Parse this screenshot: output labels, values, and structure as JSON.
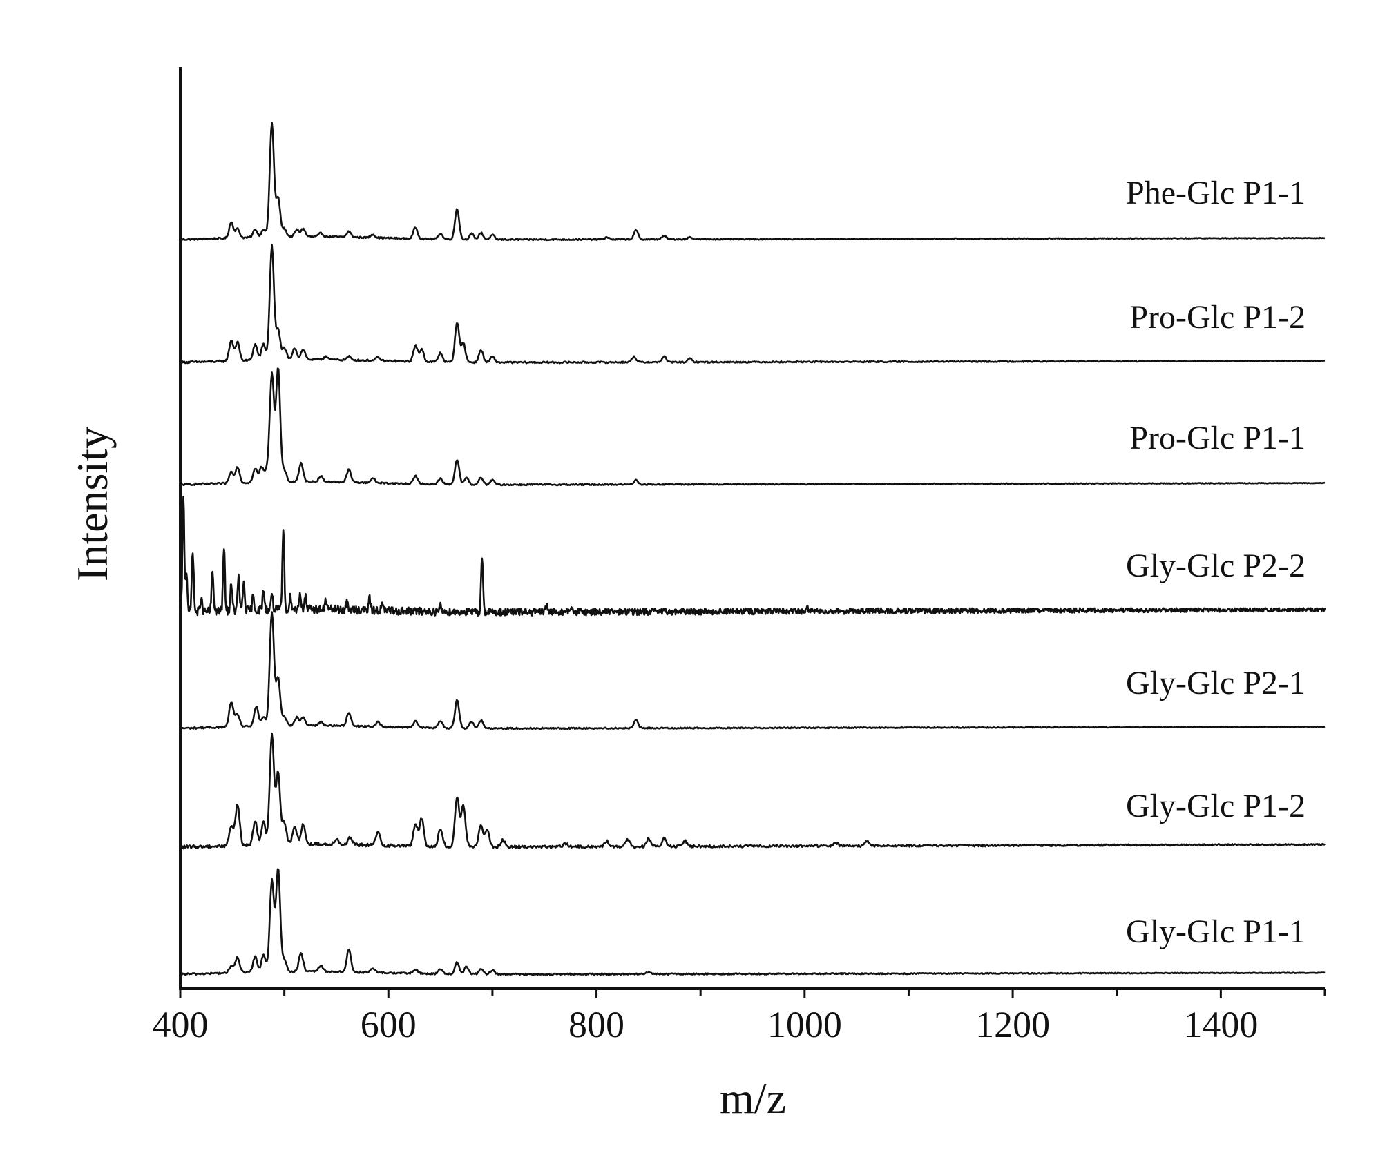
{
  "chart_data": {
    "type": "line",
    "title": "",
    "xlabel": "m/z",
    "ylabel": "Intensity",
    "xlim": [
      400,
      1500
    ],
    "x_major_ticks": [
      400,
      600,
      800,
      1000,
      1200,
      1400
    ],
    "x_minor_ticks": [
      500,
      700,
      900,
      1100,
      1300,
      1500
    ],
    "x_tick_labels": [
      "400",
      "600",
      "800",
      "1000",
      "1200",
      "1400"
    ],
    "y_ticks_shown": false,
    "grid": false,
    "legend": "labels placed at right above each stacked trace",
    "layout": "stacked offset spectra, relative intensity 0-1 per trace",
    "series": [
      {
        "name": "Phe-Glc P1-1",
        "baseline_tilt": 0.02,
        "noise": 0.006,
        "peaks": [
          [
            449,
            0.14
          ],
          [
            455,
            0.08
          ],
          [
            472,
            0.07
          ],
          [
            480,
            0.07
          ],
          [
            488,
            1.0
          ],
          [
            494,
            0.34
          ],
          [
            500,
            0.07
          ],
          [
            512,
            0.06
          ],
          [
            518,
            0.07
          ],
          [
            535,
            0.03
          ],
          [
            562,
            0.05
          ],
          [
            585,
            0.03
          ],
          [
            626,
            0.1
          ],
          [
            650,
            0.05
          ],
          [
            666,
            0.27
          ],
          [
            680,
            0.05
          ],
          [
            689,
            0.06
          ],
          [
            700,
            0.04
          ],
          [
            810,
            0.02
          ],
          [
            838,
            0.08
          ],
          [
            865,
            0.03
          ],
          [
            890,
            0.02
          ]
        ]
      },
      {
        "name": "Pro-Glc P1-2",
        "baseline_tilt": 0.02,
        "noise": 0.007,
        "peaks": [
          [
            449,
            0.18
          ],
          [
            455,
            0.16
          ],
          [
            472,
            0.14
          ],
          [
            480,
            0.14
          ],
          [
            488,
            1.0
          ],
          [
            494,
            0.26
          ],
          [
            500,
            0.1
          ],
          [
            510,
            0.1
          ],
          [
            518,
            0.09
          ],
          [
            540,
            0.03
          ],
          [
            562,
            0.03
          ],
          [
            590,
            0.03
          ],
          [
            626,
            0.14
          ],
          [
            632,
            0.11
          ],
          [
            650,
            0.08
          ],
          [
            666,
            0.35
          ],
          [
            672,
            0.17
          ],
          [
            689,
            0.11
          ],
          [
            700,
            0.05
          ],
          [
            836,
            0.05
          ],
          [
            865,
            0.05
          ],
          [
            890,
            0.03
          ]
        ]
      },
      {
        "name": "Pro-Glc P1-1",
        "baseline_tilt": 0.02,
        "noise": 0.006,
        "peaks": [
          [
            449,
            0.1
          ],
          [
            455,
            0.14
          ],
          [
            472,
            0.12
          ],
          [
            478,
            0.13
          ],
          [
            483,
            0.1
          ],
          [
            488,
            0.95
          ],
          [
            494,
            1.0
          ],
          [
            500,
            0.1
          ],
          [
            516,
            0.16
          ],
          [
            535,
            0.05
          ],
          [
            562,
            0.11
          ],
          [
            585,
            0.04
          ],
          [
            626,
            0.07
          ],
          [
            650,
            0.05
          ],
          [
            666,
            0.22
          ],
          [
            675,
            0.06
          ],
          [
            689,
            0.06
          ],
          [
            700,
            0.04
          ],
          [
            838,
            0.04
          ]
        ]
      },
      {
        "name": "Gly-Glc P2-2",
        "baseline_tilt": 0.03,
        "noise": 0.03,
        "sharp": true,
        "peaks": [
          [
            403,
            1.0
          ],
          [
            406,
            0.35
          ],
          [
            412,
            0.55
          ],
          [
            420,
            0.12
          ],
          [
            431,
            0.35
          ],
          [
            442,
            0.55
          ],
          [
            449,
            0.25
          ],
          [
            456,
            0.3
          ],
          [
            461,
            0.25
          ],
          [
            470,
            0.12
          ],
          [
            480,
            0.18
          ],
          [
            488,
            0.15
          ],
          [
            499,
            0.7
          ],
          [
            506,
            0.12
          ],
          [
            515,
            0.15
          ],
          [
            520,
            0.12
          ],
          [
            540,
            0.08
          ],
          [
            560,
            0.06
          ],
          [
            582,
            0.1
          ],
          [
            594,
            0.05
          ],
          [
            650,
            0.05
          ],
          [
            690,
            0.5
          ],
          [
            752,
            0.07
          ],
          [
            775,
            0.04
          ],
          [
            1003,
            0.03
          ]
        ]
      },
      {
        "name": "Gly-Glc P2-1",
        "baseline_tilt": 0.02,
        "noise": 0.006,
        "peaks": [
          [
            449,
            0.22
          ],
          [
            455,
            0.11
          ],
          [
            473,
            0.17
          ],
          [
            480,
            0.08
          ],
          [
            488,
            1.0
          ],
          [
            494,
            0.42
          ],
          [
            500,
            0.08
          ],
          [
            512,
            0.07
          ],
          [
            518,
            0.07
          ],
          [
            535,
            0.03
          ],
          [
            562,
            0.12
          ],
          [
            590,
            0.04
          ],
          [
            626,
            0.06
          ],
          [
            650,
            0.06
          ],
          [
            666,
            0.25
          ],
          [
            680,
            0.06
          ],
          [
            689,
            0.07
          ],
          [
            838,
            0.07
          ]
        ]
      },
      {
        "name": "Gly-Glc P1-2",
        "baseline_tilt": 0.03,
        "noise": 0.012,
        "peaks": [
          [
            449,
            0.18
          ],
          [
            455,
            0.37
          ],
          [
            472,
            0.22
          ],
          [
            480,
            0.2
          ],
          [
            488,
            1.0
          ],
          [
            494,
            0.65
          ],
          [
            500,
            0.2
          ],
          [
            510,
            0.16
          ],
          [
            518,
            0.18
          ],
          [
            550,
            0.05
          ],
          [
            563,
            0.06
          ],
          [
            590,
            0.12
          ],
          [
            626,
            0.2
          ],
          [
            632,
            0.25
          ],
          [
            650,
            0.16
          ],
          [
            666,
            0.45
          ],
          [
            672,
            0.38
          ],
          [
            689,
            0.2
          ],
          [
            695,
            0.16
          ],
          [
            710,
            0.06
          ],
          [
            770,
            0.03
          ],
          [
            810,
            0.05
          ],
          [
            830,
            0.06
          ],
          [
            850,
            0.07
          ],
          [
            865,
            0.07
          ],
          [
            885,
            0.05
          ],
          [
            1030,
            0.03
          ],
          [
            1060,
            0.04
          ]
        ]
      },
      {
        "name": "Gly-Glc P1-1",
        "baseline_tilt": 0.02,
        "noise": 0.007,
        "peaks": [
          [
            449,
            0.07
          ],
          [
            455,
            0.15
          ],
          [
            472,
            0.15
          ],
          [
            480,
            0.17
          ],
          [
            488,
            0.88
          ],
          [
            494,
            1.0
          ],
          [
            500,
            0.12
          ],
          [
            516,
            0.18
          ],
          [
            535,
            0.06
          ],
          [
            562,
            0.22
          ],
          [
            585,
            0.04
          ],
          [
            626,
            0.04
          ],
          [
            650,
            0.05
          ],
          [
            666,
            0.11
          ],
          [
            675,
            0.07
          ],
          [
            689,
            0.05
          ],
          [
            700,
            0.04
          ],
          [
            850,
            0.02
          ]
        ]
      }
    ]
  }
}
